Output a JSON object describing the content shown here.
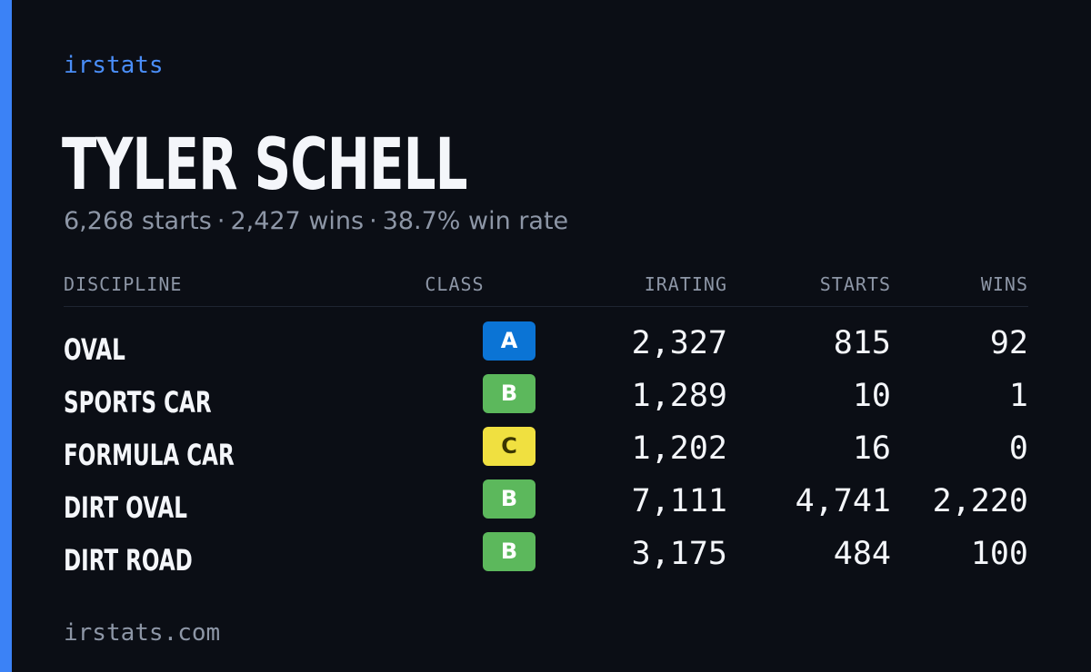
{
  "brand": "irstats",
  "player": {
    "name": "TYLER SCHELL",
    "starts_text": "6,268 starts",
    "wins_text": "2,427 wins",
    "win_rate_text": "38.7% win rate",
    "separator": "·"
  },
  "table": {
    "headers": {
      "discipline": "DISCIPLINE",
      "class": "CLASS",
      "irating": "IRATING",
      "starts": "STARTS",
      "wins": "WINS"
    },
    "rows": [
      {
        "discipline": "OVAL",
        "class": "A",
        "irating": "2,327",
        "starts": "815",
        "wins": "92"
      },
      {
        "discipline": "SPORTS CAR",
        "class": "B",
        "irating": "1,289",
        "starts": "10",
        "wins": "1"
      },
      {
        "discipline": "FORMULA CAR",
        "class": "C",
        "irating": "1,202",
        "starts": "16",
        "wins": "0"
      },
      {
        "discipline": "DIRT OVAL",
        "class": "B",
        "irating": "7,111",
        "starts": "4,741",
        "wins": "2,220"
      },
      {
        "discipline": "DIRT ROAD",
        "class": "B",
        "irating": "3,175",
        "starts": "484",
        "wins": "100"
      }
    ]
  },
  "class_colors": {
    "A": {
      "bg": "#0b74d5",
      "fg": "#ffffff"
    },
    "B": {
      "bg": "#5cb85c",
      "fg": "#ffffff"
    },
    "C": {
      "bg": "#f0e040",
      "fg": "#3a3500"
    }
  },
  "footer": {
    "url": "irstats.com"
  },
  "colors": {
    "background": "#0b0e15",
    "accent": "#3b82f6",
    "brand_text": "#4a8ef8",
    "muted_text": "#8d96a6",
    "primary_text": "#f4f6fa"
  }
}
